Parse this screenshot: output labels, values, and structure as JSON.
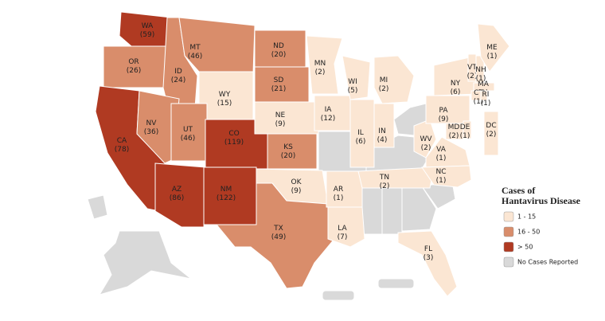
{
  "map": {
    "legend": {
      "title": [
        "Cases of",
        "Hantavirus Disease"
      ],
      "items": [
        {
          "label": "1 - 15",
          "color": "#fbe6d3",
          "range": [
            1,
            15
          ]
        },
        {
          "label": "16 - 50",
          "color": "#d98d6b",
          "range": [
            16,
            50
          ]
        },
        {
          "label": "> 50",
          "color": "#b03a22",
          "range": [
            51,
            1000
          ]
        },
        {
          "label": "No Cases Reported",
          "color": "#d9d9d9"
        }
      ]
    },
    "states": [
      {
        "abbr": "WA",
        "cases": 59,
        "cases_label": "(59)"
      },
      {
        "abbr": "OR",
        "cases": 26,
        "cases_label": "(26)"
      },
      {
        "abbr": "CA",
        "cases": 78,
        "cases_label": "(78)"
      },
      {
        "abbr": "ID",
        "cases": 24,
        "cases_label": "(24)"
      },
      {
        "abbr": "NV",
        "cases": 36,
        "cases_label": "(36)"
      },
      {
        "abbr": "MT",
        "cases": 46,
        "cases_label": "(46)"
      },
      {
        "abbr": "WY",
        "cases": 15,
        "cases_label": "(15)"
      },
      {
        "abbr": "UT",
        "cases": 46,
        "cases_label": "(46)"
      },
      {
        "abbr": "CO",
        "cases": 119,
        "cases_label": "(119)"
      },
      {
        "abbr": "AZ",
        "cases": 86,
        "cases_label": "(86)"
      },
      {
        "abbr": "NM",
        "cases": 122,
        "cases_label": "(122)"
      },
      {
        "abbr": "ND",
        "cases": 20,
        "cases_label": "(20)"
      },
      {
        "abbr": "SD",
        "cases": 21,
        "cases_label": "(21)"
      },
      {
        "abbr": "NE",
        "cases": 9,
        "cases_label": "(9)"
      },
      {
        "abbr": "KS",
        "cases": 20,
        "cases_label": "(20)"
      },
      {
        "abbr": "OK",
        "cases": 9,
        "cases_label": "(9)"
      },
      {
        "abbr": "TX",
        "cases": 49,
        "cases_label": "(49)"
      },
      {
        "abbr": "MN",
        "cases": 2,
        "cases_label": "(2)"
      },
      {
        "abbr": "IA",
        "cases": 12,
        "cases_label": "(12)"
      },
      {
        "abbr": "AR",
        "cases": 1,
        "cases_label": "(1)"
      },
      {
        "abbr": "LA",
        "cases": 7,
        "cases_label": "(7)"
      },
      {
        "abbr": "WI",
        "cases": 5,
        "cases_label": "(5)"
      },
      {
        "abbr": "IL",
        "cases": 6,
        "cases_label": "(6)"
      },
      {
        "abbr": "IN",
        "cases": 4,
        "cases_label": "(4)"
      },
      {
        "abbr": "MI",
        "cases": 2,
        "cases_label": "(2)"
      },
      {
        "abbr": "TN",
        "cases": 2,
        "cases_label": "(2)"
      },
      {
        "abbr": "FL",
        "cases": 3,
        "cases_label": "(3)"
      },
      {
        "abbr": "WV",
        "cases": 2,
        "cases_label": "(2)"
      },
      {
        "abbr": "VA",
        "cases": 1,
        "cases_label": "(1)"
      },
      {
        "abbr": "NC",
        "cases": 1,
        "cases_label": "(1)"
      },
      {
        "abbr": "PA",
        "cases": 9,
        "cases_label": "(9)"
      },
      {
        "abbr": "NY",
        "cases": 6,
        "cases_label": "(6)"
      },
      {
        "abbr": "MD",
        "cases": 2,
        "cases_label": "(2)"
      },
      {
        "abbr": "DE",
        "cases": 1,
        "cases_label": "(1)"
      },
      {
        "abbr": "DC",
        "cases": 2,
        "cases_label": "(2)"
      },
      {
        "abbr": "VT",
        "cases": 2,
        "cases_label": "(2)"
      },
      {
        "abbr": "NH",
        "cases": 1,
        "cases_label": "(1)"
      },
      {
        "abbr": "ME",
        "cases": 1,
        "cases_label": "(1)"
      },
      {
        "abbr": "MA",
        "cases": 2,
        "cases_label": "(2)"
      },
      {
        "abbr": "CT",
        "cases": 1,
        "cases_label": "(1)"
      },
      {
        "abbr": "RI",
        "cases": 1,
        "cases_label": "(1)"
      }
    ]
  }
}
